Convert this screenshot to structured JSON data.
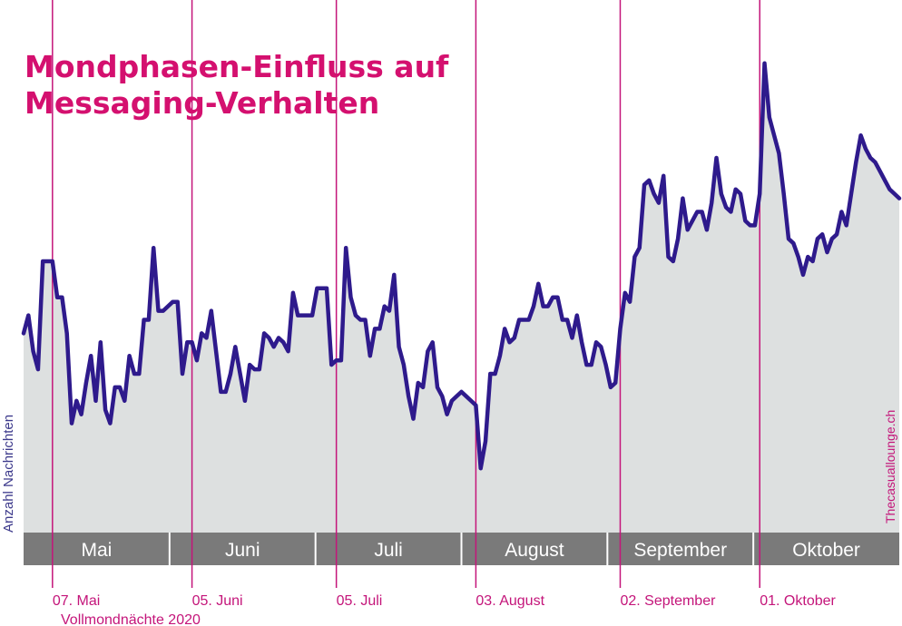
{
  "chart_data": {
    "type": "area",
    "title_lines": [
      "Mondphasen-Einfluss auf",
      "Messaging-Verhalten"
    ],
    "ylabel": "Anzahl Nachrichten",
    "credit": "Thecasuallounge.ch",
    "footer": "Vollmondnächte 2020",
    "months": [
      "Mai",
      "Juni",
      "Juli",
      "August",
      "September",
      "Oktober"
    ],
    "full_moons": [
      {
        "label": "07. Mai",
        "day": 6
      },
      {
        "label": "05. Juni",
        "day": 35
      },
      {
        "label": "05. Juli",
        "day": 65
      },
      {
        "label": "03. August",
        "day": 94
      },
      {
        "label": "02. September",
        "day": 124
      },
      {
        "label": "01. Oktober",
        "day": 153
      }
    ],
    "x_range_days": [
      0,
      182
    ],
    "y_range": [
      0,
      100
    ],
    "series": [
      {
        "values": [
          35,
          39,
          31,
          27,
          51,
          51,
          51,
          43,
          43,
          35,
          15,
          20,
          17,
          24,
          30,
          20,
          33,
          18,
          15,
          23,
          23,
          20,
          30,
          26,
          26,
          38,
          38,
          54,
          40,
          40,
          41,
          42,
          42,
          26,
          33,
          33,
          29,
          35,
          34,
          40,
          31,
          22,
          22,
          26,
          32,
          26,
          20,
          28,
          27,
          27,
          35,
          34,
          32,
          34,
          33,
          31,
          44,
          39,
          39,
          39,
          39,
          45,
          45,
          45,
          28,
          29,
          29,
          54,
          43,
          39,
          38,
          38,
          30,
          36,
          36,
          41,
          40,
          48,
          32,
          28,
          21,
          16,
          24,
          23,
          31,
          33,
          23,
          21,
          17,
          20,
          21,
          22,
          21,
          20,
          19,
          5,
          11,
          26,
          26,
          30,
          36,
          33,
          34,
          38,
          38,
          38,
          41,
          46,
          41,
          41,
          43,
          43,
          38,
          38,
          34,
          39,
          33,
          28,
          28,
          33,
          32,
          28,
          23,
          24,
          36,
          44,
          42,
          52,
          54,
          68,
          69,
          66,
          64,
          70,
          52,
          51,
          56,
          65,
          58,
          60,
          62,
          62,
          58,
          64,
          74,
          66,
          63,
          62,
          67,
          66,
          60,
          59,
          59,
          66,
          95,
          83,
          79,
          75,
          66,
          56,
          55,
          52,
          48,
          52,
          51,
          56,
          57,
          53,
          56,
          57,
          62,
          59,
          66,
          73,
          79,
          76,
          74,
          73,
          71,
          69,
          67,
          66,
          65
        ]
      }
    ]
  }
}
